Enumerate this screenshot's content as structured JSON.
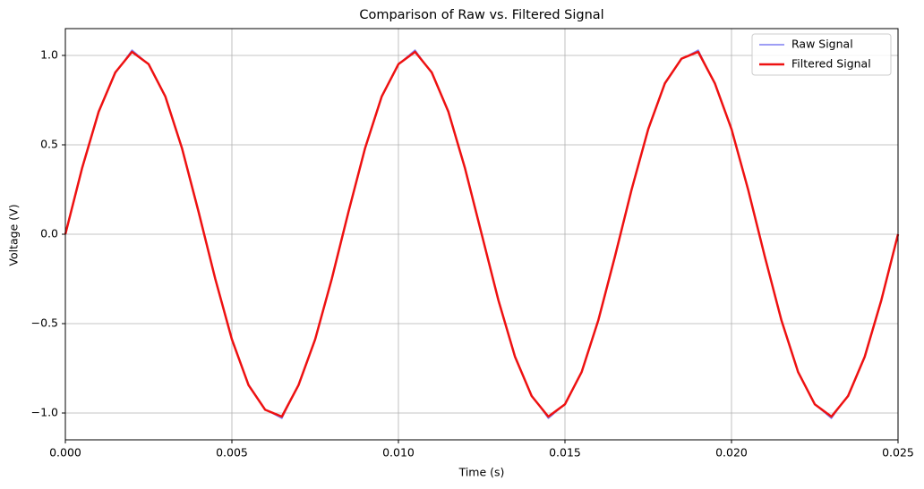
{
  "chart_data": {
    "type": "line",
    "title": "Comparison of Raw vs. Filtered Signal",
    "x_label": "Time (s)",
    "y_label": "Voltage (V)",
    "x": [
      0,
      0.0005,
      0.001,
      0.0015,
      0.002,
      0.0025,
      0.003,
      0.0035,
      0.004,
      0.0045,
      0.005,
      0.0055,
      0.006,
      0.0065,
      0.007,
      0.0075,
      0.008,
      0.0085,
      0.009,
      0.0095,
      0.01,
      0.0105,
      0.011,
      0.0115,
      0.012,
      0.0125,
      0.013,
      0.0135,
      0.014,
      0.0145,
      0.015,
      0.0155,
      0.016,
      0.0165,
      0.017,
      0.0175,
      0.018,
      0.0185,
      0.019,
      0.0195,
      0.02,
      0.0205,
      0.021,
      0.0215,
      0.022,
      0.0225,
      0.023,
      0.0235,
      0.024,
      0.0245,
      0.025
    ],
    "series": [
      {
        "name": "Raw Signal",
        "color": "#7f7ff2",
        "width": 1.5,
        "values": [
          0,
          0.37,
          0.69,
          0.9,
          1.03,
          0.95,
          0.77,
          0.48,
          0.12,
          -0.25,
          -0.59,
          -0.84,
          -0.98,
          -1.03,
          -0.84,
          -0.59,
          -0.25,
          0.12,
          0.48,
          0.77,
          0.95,
          1.03,
          0.9,
          0.69,
          0.37,
          0,
          -0.37,
          -0.69,
          -0.9,
          -1.03,
          -0.95,
          -0.77,
          -0.48,
          -0.12,
          0.25,
          0.59,
          0.84,
          0.98,
          1.03,
          0.84,
          0.59,
          0.25,
          -0.12,
          -0.48,
          -0.77,
          -0.95,
          -1.03,
          -0.9,
          -0.69,
          -0.37,
          0
        ]
      },
      {
        "name": "Filtered Signal",
        "color": "#ee1111",
        "width": 2.5,
        "values": [
          0,
          0.368,
          0.685,
          0.905,
          1.02,
          0.951,
          0.771,
          0.482,
          0.125,
          -0.249,
          -0.588,
          -0.844,
          -0.982,
          -1.02,
          -0.844,
          -0.588,
          -0.249,
          0.125,
          0.482,
          0.771,
          0.951,
          1.02,
          0.905,
          0.685,
          0.368,
          0,
          -0.368,
          -0.685,
          -0.905,
          -1.02,
          -0.951,
          -0.771,
          -0.482,
          -0.125,
          0.249,
          0.588,
          0.844,
          0.982,
          1.02,
          0.844,
          0.588,
          0.249,
          -0.125,
          -0.482,
          -0.771,
          -0.951,
          -1.02,
          -0.905,
          -0.685,
          -0.368,
          0
        ]
      }
    ],
    "xlim": [
      0,
      0.025
    ],
    "xticks": [
      {
        "value": 0,
        "label": "0.000"
      },
      {
        "value": 0.005,
        "label": "0.005"
      },
      {
        "value": 0.01,
        "label": "0.010"
      },
      {
        "value": 0.015,
        "label": "0.015"
      },
      {
        "value": 0.02,
        "label": "0.020"
      },
      {
        "value": 0.025,
        "label": "0.025"
      }
    ],
    "ylim": [
      -1.15,
      1.15
    ],
    "yticks": [
      {
        "value": -1,
        "label": "−1.0"
      },
      {
        "value": -0.5,
        "label": "−0.5"
      },
      {
        "value": 0,
        "label": "0.0"
      },
      {
        "value": 0.5,
        "label": "0.5"
      },
      {
        "value": 1,
        "label": "1.0"
      }
    ],
    "grid": true,
    "legend": "upper right"
  }
}
